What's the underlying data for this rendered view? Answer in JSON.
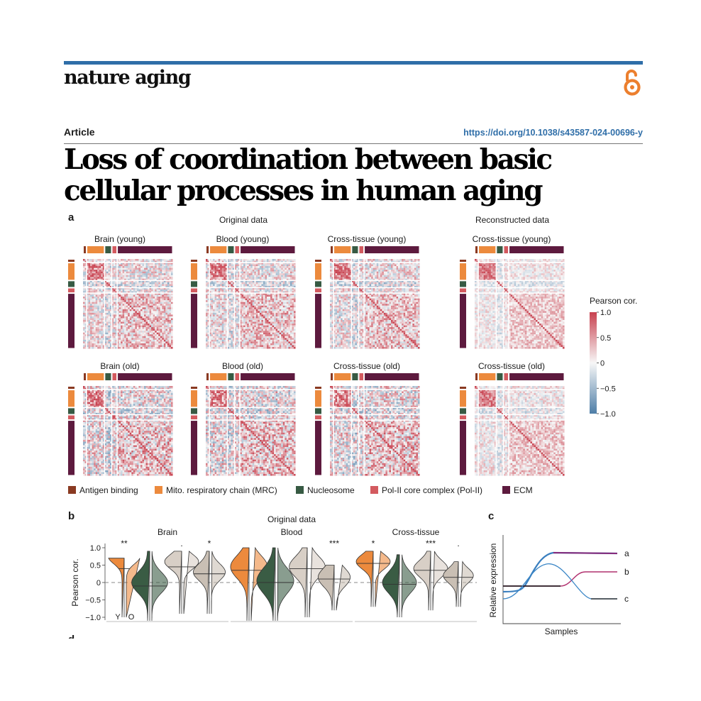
{
  "header": {
    "journal": "nature aging",
    "article_type": "Article",
    "doi": "https://doi.org/10.1038/s43587-024-00696-y",
    "title": "Loss of coordination between basic cellular processes in human aging",
    "accent_color": "#2f6ea8",
    "oa_icon": "open-access-icon",
    "oa_color": "#ec7f2e"
  },
  "panel_a": {
    "letter": "a",
    "group_original": "Original data",
    "group_reconstructed": "Reconstructed data",
    "heatmaps": [
      {
        "title": "Brain (young)"
      },
      {
        "title": "Blood (young)"
      },
      {
        "title": "Cross-tissue (young)"
      },
      {
        "title": "Cross-tissue (young)"
      },
      {
        "title": "Brain (old)"
      },
      {
        "title": "Blood (old)"
      },
      {
        "title": "Cross-tissue (old)"
      },
      {
        "title": "Cross-tissue (old)"
      }
    ],
    "colorbar": {
      "title": "Pearson cor.",
      "ticks": [
        "1.0",
        "0.5",
        "0",
        "−0.5",
        "−1.0"
      ],
      "colors": {
        "high": "#c8414f",
        "mid": "#f7f7f7",
        "low": "#4e7ea7"
      }
    },
    "legend": [
      {
        "label": "Antigen binding",
        "color": "#8a3a22"
      },
      {
        "label": "Mito. respiratory chain (MRC)",
        "color": "#ec8a3d"
      },
      {
        "label": "Nucleosome",
        "color": "#375a43"
      },
      {
        "label": "Pol-II core complex (Pol-II)",
        "color": "#d35a5f"
      },
      {
        "label": "ECM",
        "color": "#5d1a3e"
      }
    ]
  },
  "panel_b": {
    "letter": "b",
    "heading": "Original data",
    "groups": [
      "Brain",
      "Blood",
      "Cross-tissue"
    ],
    "ylabel": "Pearson cor.",
    "yticks": [
      "1.0",
      "0.5",
      "0",
      "−0.5",
      "−1.0"
    ],
    "significance": [
      [
        "**",
        "",
        ".",
        "*"
      ],
      [
        "",
        "",
        "",
        "***"
      ],
      [
        "*",
        "",
        "***",
        "."
      ]
    ],
    "age_labels": [
      "Y",
      "O"
    ],
    "category_colors": [
      "#ec8a3d",
      "#3a5c44",
      "#d8cfc6",
      "#c9bfb4"
    ]
  },
  "panel_c": {
    "letter": "c",
    "ylabel": "Relative expression",
    "xlabel": "Samples",
    "curve_labels": [
      "a",
      "b",
      "c"
    ]
  },
  "panel_d": {
    "letter": "d"
  }
}
